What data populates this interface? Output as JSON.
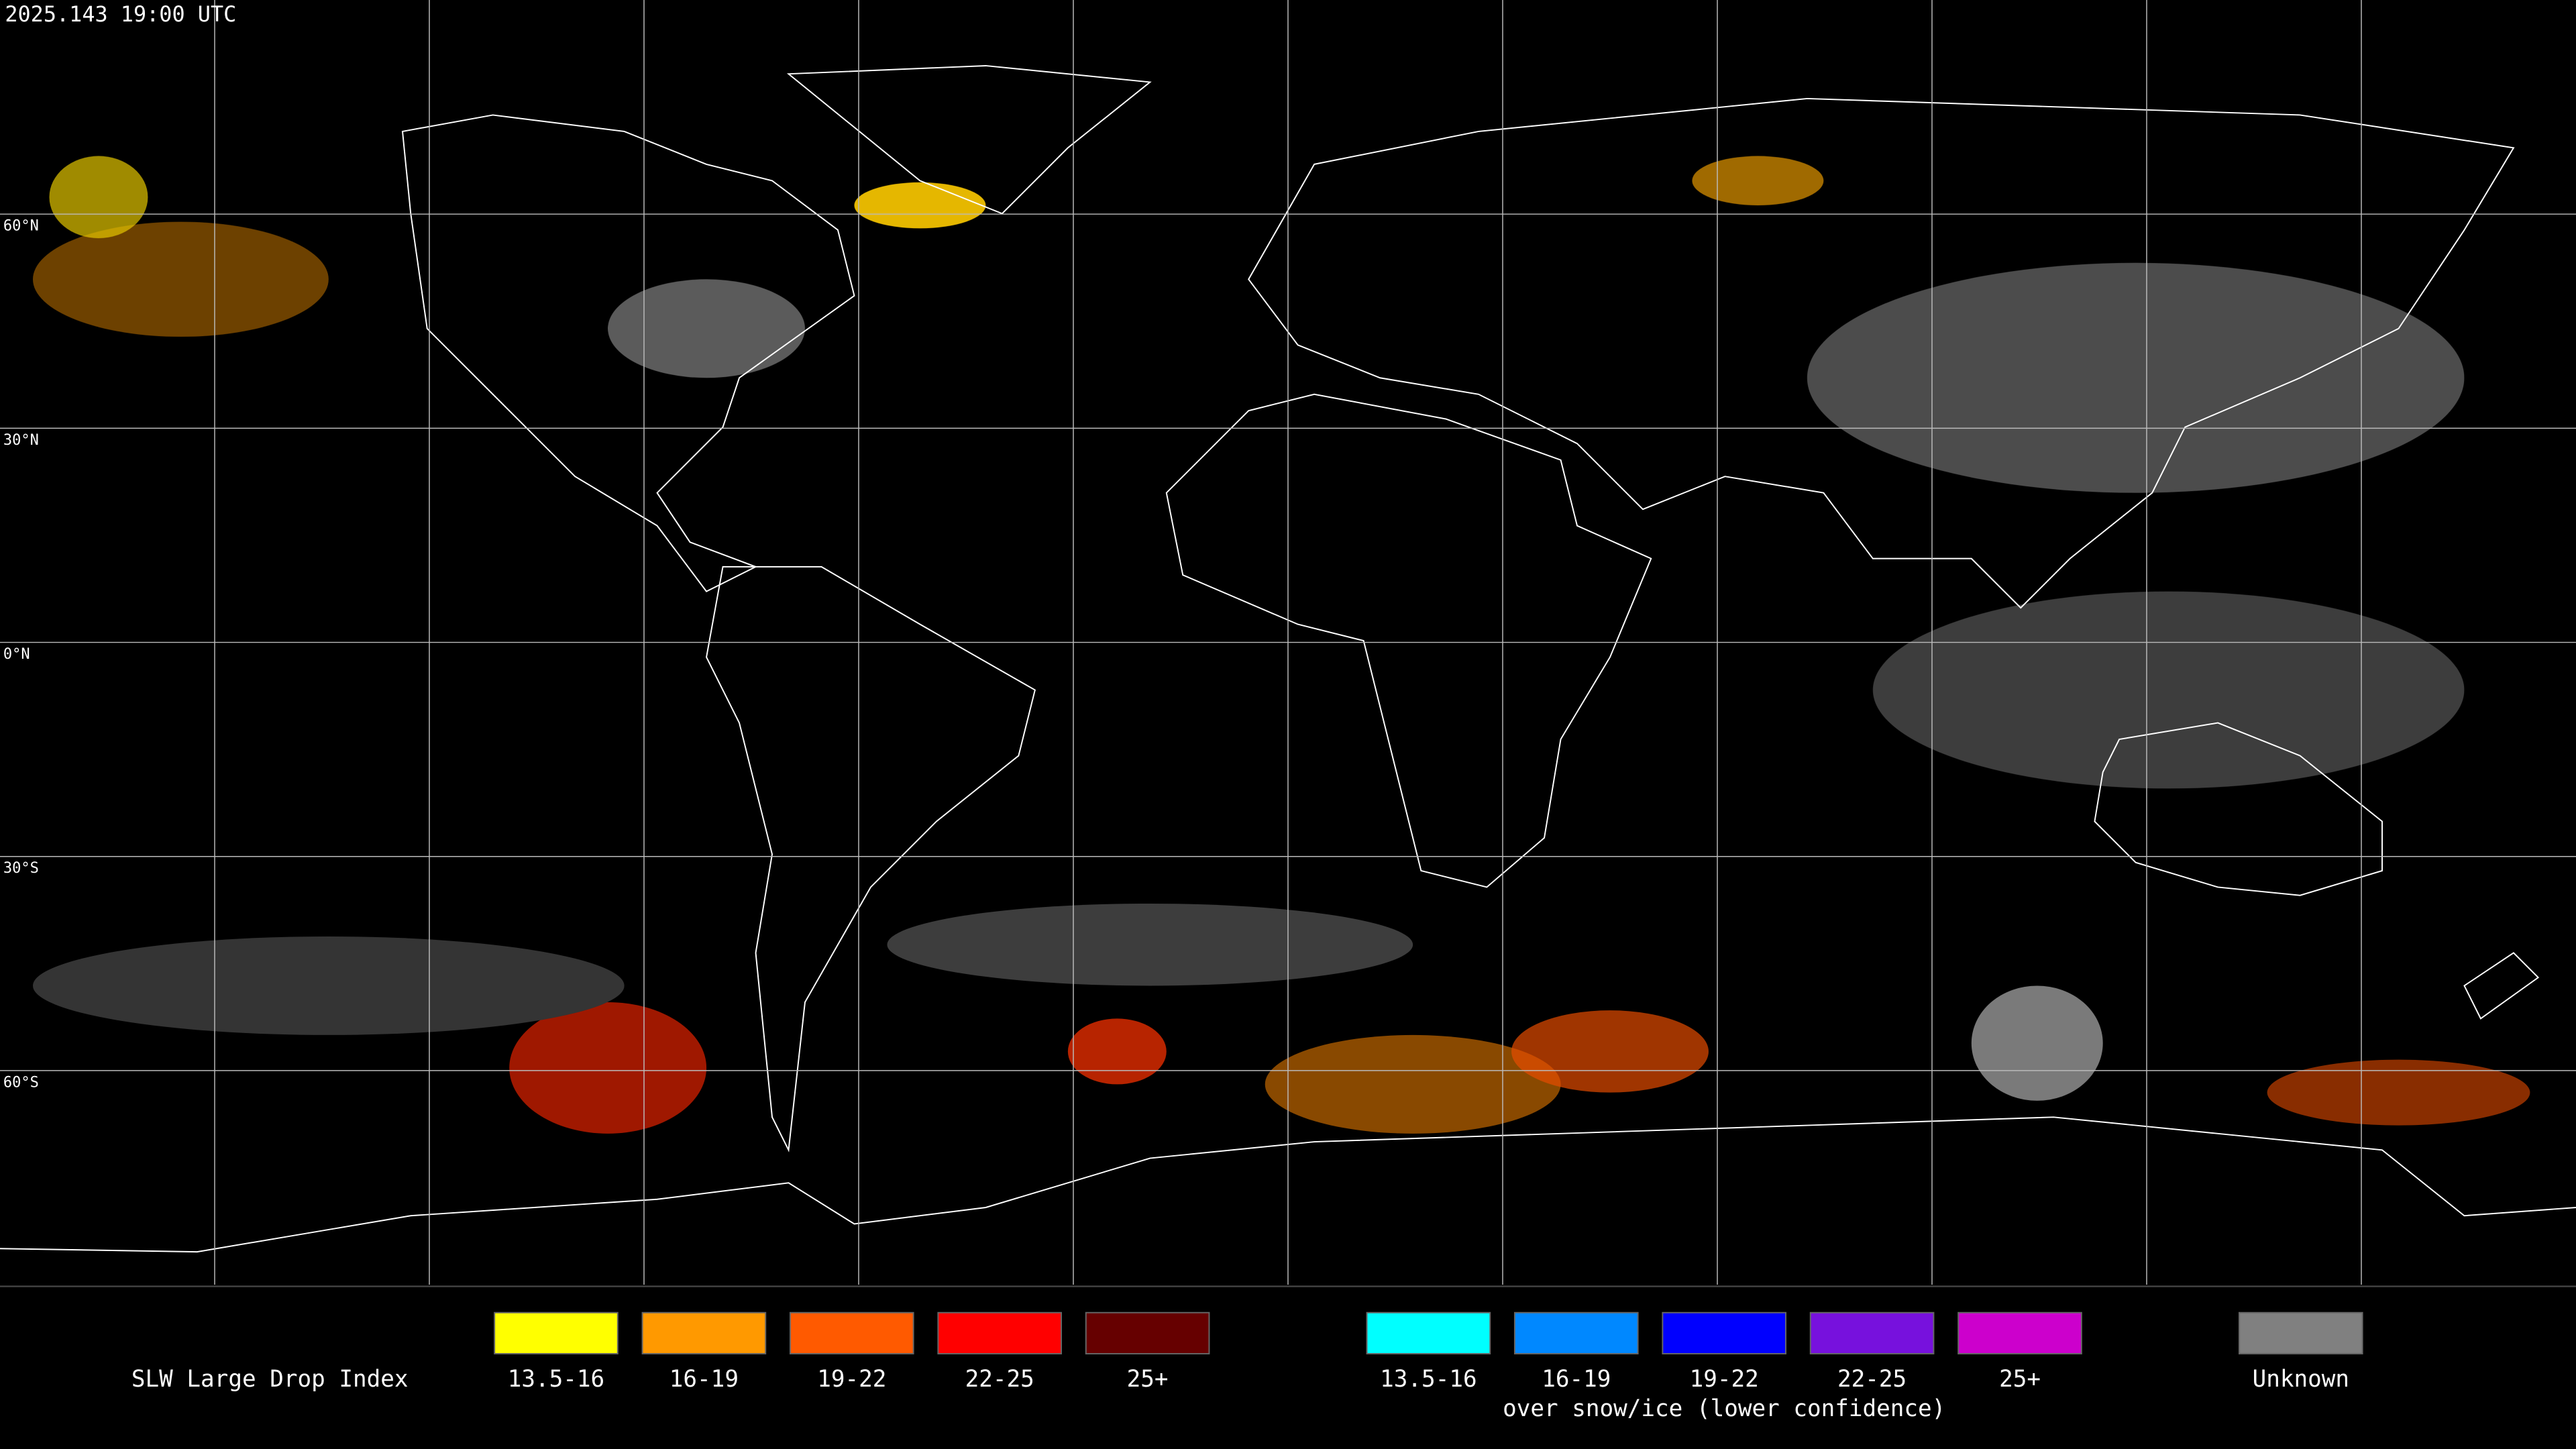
{
  "title": "2025.143 19:00 UTC",
  "latitude_labels": [
    "60°N",
    "30°N",
    "0°N",
    "30°S",
    "60°S"
  ],
  "legend": {
    "title": "SLW Large Drop Index",
    "groups": [
      {
        "items": [
          {
            "label": "13.5-16",
            "color": "#ffff00"
          },
          {
            "label": "16-19",
            "color": "#ff9900"
          },
          {
            "label": "19-22",
            "color": "#ff5a00"
          },
          {
            "label": "22-25",
            "color": "#ff0000"
          },
          {
            "label": "25+",
            "color": "#660000"
          }
        ]
      },
      {
        "caption": "over snow/ice (lower confidence)",
        "items": [
          {
            "label": "13.5-16",
            "color": "#00ffff"
          },
          {
            "label": "16-19",
            "color": "#0088ff"
          },
          {
            "label": "19-22",
            "color": "#0000ff"
          },
          {
            "label": "22-25",
            "color": "#7711dd"
          },
          {
            "label": "25+",
            "color": "#cc00cc"
          }
        ]
      },
      {
        "items": [
          {
            "label": "Unknown",
            "color": "#808080"
          }
        ]
      }
    ]
  }
}
